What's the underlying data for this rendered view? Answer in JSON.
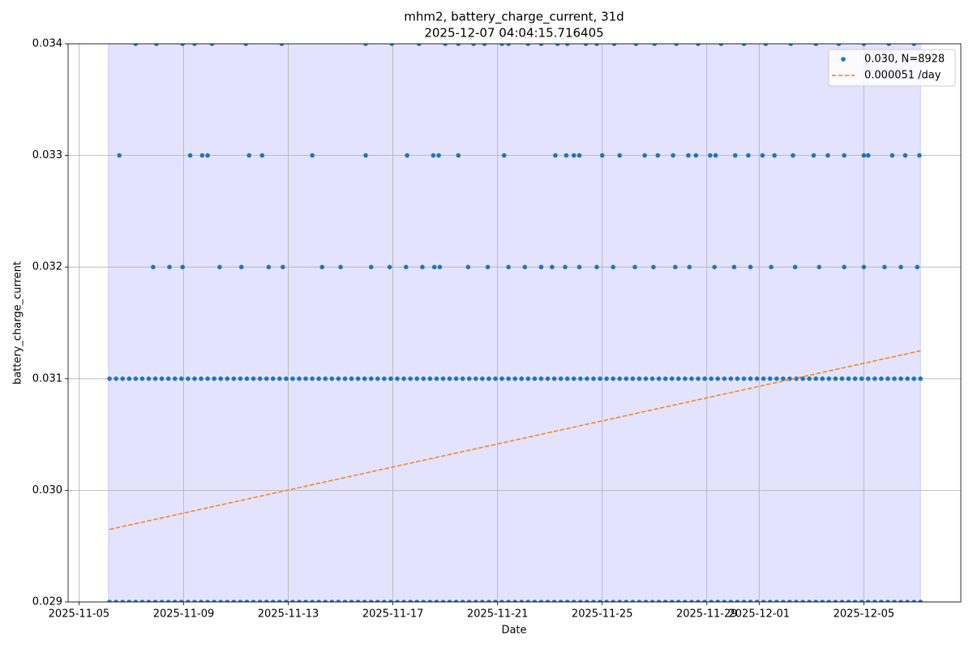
{
  "chart_data": {
    "type": "scatter",
    "title": "mhm2, battery_charge_current, 31d",
    "subtitle": "2025-12-07 04:04:15.716405",
    "x_label": "Date",
    "y_label": "battery_charge_current",
    "xlim": [
      "2025-11-04T14:00",
      "2025-12-08T17:00"
    ],
    "xticks": [
      "2025-11-05",
      "2025-11-09",
      "2025-11-13",
      "2025-11-17",
      "2025-11-21",
      "2025-11-25",
      "2025-11-29",
      "2025-12-01",
      "2025-12-05"
    ],
    "ylim": [
      0.029,
      0.034
    ],
    "yticks": [
      0.029,
      {
        "value": 0.03,
        "label": "0.030"
      },
      0.031,
      0.032,
      0.033,
      0.034
    ],
    "grid": true,
    "legend": "upper right",
    "shaded_span": [
      "2025-11-06T03:00",
      "2025-12-07T04:00"
    ],
    "span_color": "#0000ff",
    "series": [
      {
        "name": "0.030, N=8928",
        "color": "#1f77b4",
        "kind": "scatter",
        "x": [
          "2025-11-06T04:00",
          "2025-11-06T10:00",
          "2025-11-06T16:00",
          "2025-11-06T22:00",
          "2025-11-07T04:00",
          "2025-11-07T10:00",
          "2025-11-07T16:00",
          "2025-11-07T22:00",
          "2025-11-08T04:00",
          "2025-11-08T10:00",
          "2025-11-08T16:00",
          "2025-11-08T22:00",
          "2025-11-09T04:00",
          "2025-11-09T10:00",
          "2025-11-09T16:00",
          "2025-11-09T22:00",
          "2025-11-10T04:00",
          "2025-11-10T10:00",
          "2025-11-10T16:00",
          "2025-11-10T22:00",
          "2025-11-11T04:00",
          "2025-11-11T10:00",
          "2025-11-11T16:00",
          "2025-11-11T22:00",
          "2025-11-12T04:00",
          "2025-11-12T10:00",
          "2025-11-12T16:00",
          "2025-11-12T22:00",
          "2025-11-13T04:00",
          "2025-11-13T10:00",
          "2025-11-13T16:00",
          "2025-11-13T22:00",
          "2025-11-14T04:00",
          "2025-11-14T10:00",
          "2025-11-14T16:00",
          "2025-11-14T22:00",
          "2025-11-15T04:00",
          "2025-11-15T10:00",
          "2025-11-15T16:00",
          "2025-11-15T22:00",
          "2025-11-16T04:00",
          "2025-11-16T10:00",
          "2025-11-16T16:00",
          "2025-11-16T22:00",
          "2025-11-17T04:00",
          "2025-11-17T10:00",
          "2025-11-17T16:00",
          "2025-11-17T22:00",
          "2025-11-18T04:00",
          "2025-11-18T10:00",
          "2025-11-18T16:00",
          "2025-11-18T22:00",
          "2025-11-19T04:00",
          "2025-11-19T10:00",
          "2025-11-19T16:00",
          "2025-11-19T22:00",
          "2025-11-20T04:00",
          "2025-11-20T10:00",
          "2025-11-20T16:00",
          "2025-11-20T22:00",
          "2025-11-21T04:00",
          "2025-11-21T10:00",
          "2025-11-21T16:00",
          "2025-11-21T22:00",
          "2025-11-22T04:00",
          "2025-11-22T10:00",
          "2025-11-22T16:00",
          "2025-11-22T22:00",
          "2025-11-23T04:00",
          "2025-11-23T10:00",
          "2025-11-23T16:00",
          "2025-11-23T22:00",
          "2025-11-24T04:00",
          "2025-11-24T10:00",
          "2025-11-24T16:00",
          "2025-11-24T22:00",
          "2025-11-25T04:00",
          "2025-11-25T10:00",
          "2025-11-25T16:00",
          "2025-11-25T22:00",
          "2025-11-26T04:00",
          "2025-11-26T10:00",
          "2025-11-26T16:00",
          "2025-11-26T22:00",
          "2025-11-27T04:00",
          "2025-11-27T10:00",
          "2025-11-27T16:00",
          "2025-11-27T22:00",
          "2025-11-28T04:00",
          "2025-11-28T10:00",
          "2025-11-28T16:00",
          "2025-11-28T22:00",
          "2025-11-29T04:00",
          "2025-11-29T10:00",
          "2025-11-29T16:00",
          "2025-11-29T22:00",
          "2025-11-30T04:00",
          "2025-11-30T10:00",
          "2025-11-30T16:00",
          "2025-11-30T22:00",
          "2025-12-01T04:00",
          "2025-12-01T10:00",
          "2025-12-01T16:00",
          "2025-12-01T22:00",
          "2025-12-02T04:00",
          "2025-12-02T10:00",
          "2025-12-02T16:00",
          "2025-12-02T22:00",
          "2025-12-03T04:00",
          "2025-12-03T10:00",
          "2025-12-03T16:00",
          "2025-12-03T22:00",
          "2025-12-04T04:00",
          "2025-12-04T10:00",
          "2025-12-04T16:00",
          "2025-12-04T22:00",
          "2025-12-05T04:00",
          "2025-12-05T10:00",
          "2025-12-05T16:00",
          "2025-12-05T22:00",
          "2025-12-06T04:00",
          "2025-12-06T10:00",
          "2025-12-06T16:00",
          "2025-12-06T22:00",
          "2025-12-07T04:00",
          "2025-11-06T04:00",
          "2025-11-06T10:00",
          "2025-11-06T16:00",
          "2025-11-06T22:00",
          "2025-11-07T04:00",
          "2025-11-07T10:00",
          "2025-11-07T16:00",
          "2025-11-07T22:00",
          "2025-11-08T04:00",
          "2025-11-08T10:00",
          "2025-11-08T16:00",
          "2025-11-08T22:00",
          "2025-11-09T04:00",
          "2025-11-09T10:00",
          "2025-11-09T16:00",
          "2025-11-09T22:00",
          "2025-11-10T04:00",
          "2025-11-10T10:00",
          "2025-11-10T16:00",
          "2025-11-10T22:00",
          "2025-11-11T04:00",
          "2025-11-11T10:00",
          "2025-11-11T16:00",
          "2025-11-11T22:00",
          "2025-11-12T04:00",
          "2025-11-12T10:00",
          "2025-11-12T16:00",
          "2025-11-12T22:00",
          "2025-11-13T04:00",
          "2025-11-13T10:00",
          "2025-11-13T16:00",
          "2025-11-13T22:00",
          "2025-11-14T04:00",
          "2025-11-14T10:00",
          "2025-11-14T16:00",
          "2025-11-14T22:00",
          "2025-11-15T04:00",
          "2025-11-15T10:00",
          "2025-11-15T16:00",
          "2025-11-15T22:00",
          "2025-11-16T04:00",
          "2025-11-16T10:00",
          "2025-11-16T16:00",
          "2025-11-16T22:00",
          "2025-11-17T04:00",
          "2025-11-17T10:00",
          "2025-11-17T16:00",
          "2025-11-17T22:00",
          "2025-11-18T04:00",
          "2025-11-18T10:00",
          "2025-11-18T16:00",
          "2025-11-18T22:00",
          "2025-11-19T04:00",
          "2025-11-19T10:00",
          "2025-11-19T16:00",
          "2025-11-19T22:00",
          "2025-11-20T04:00",
          "2025-11-20T10:00",
          "2025-11-20T16:00",
          "2025-11-20T22:00",
          "2025-11-21T04:00",
          "2025-11-21T10:00",
          "2025-11-21T16:00",
          "2025-11-21T22:00",
          "2025-11-22T04:00",
          "2025-11-22T10:00",
          "2025-11-22T16:00",
          "2025-11-22T22:00",
          "2025-11-23T04:00",
          "2025-11-23T10:00",
          "2025-11-23T16:00",
          "2025-11-23T22:00",
          "2025-11-24T04:00",
          "2025-11-24T10:00",
          "2025-11-24T16:00",
          "2025-11-24T22:00",
          "2025-11-25T04:00",
          "2025-11-25T10:00",
          "2025-11-25T16:00",
          "2025-11-25T22:00",
          "2025-11-26T04:00",
          "2025-11-26T10:00",
          "2025-11-26T16:00",
          "2025-11-26T22:00",
          "2025-11-27T04:00",
          "2025-11-27T10:00",
          "2025-11-27T16:00",
          "2025-11-27T22:00",
          "2025-11-28T04:00",
          "2025-11-28T10:00",
          "2025-11-28T16:00",
          "2025-11-28T22:00",
          "2025-11-29T04:00",
          "2025-11-29T10:00",
          "2025-11-29T16:00",
          "2025-11-29T22:00",
          "2025-11-30T04:00",
          "2025-11-30T10:00",
          "2025-11-30T16:00",
          "2025-11-30T22:00",
          "2025-12-01T04:00",
          "2025-12-01T10:00",
          "2025-12-01T16:00",
          "2025-12-01T22:00",
          "2025-12-02T04:00",
          "2025-12-02T10:00",
          "2025-12-02T16:00",
          "2025-12-02T22:00",
          "2025-12-03T04:00",
          "2025-12-03T10:00",
          "2025-12-03T16:00",
          "2025-12-03T22:00",
          "2025-12-04T04:00",
          "2025-12-04T10:00",
          "2025-12-04T16:00",
          "2025-12-04T22:00",
          "2025-12-05T04:00",
          "2025-12-05T10:00",
          "2025-12-05T16:00",
          "2025-12-05T22:00",
          "2025-12-06T04:00",
          "2025-12-06T10:00",
          "2025-12-06T16:00",
          "2025-12-06T22:00",
          "2025-12-07T04:00",
          "2025-11-07T04:00",
          "2025-11-07T23:00",
          "2025-11-08T23:00",
          "2025-11-09T10:00",
          "2025-11-10T02:00",
          "2025-11-11T09:00",
          "2025-11-12T18:00",
          "2025-11-15T23:00",
          "2025-11-16T23:00",
          "2025-11-18T00:00",
          "2025-11-19T00:00",
          "2025-11-19T12:00",
          "2025-11-20T02:00",
          "2025-11-20T12:00",
          "2025-11-21T04:00",
          "2025-11-21T10:00",
          "2025-11-22T04:00",
          "2025-11-22T16:00",
          "2025-11-23T07:00",
          "2025-11-23T16:00",
          "2025-11-24T09:00",
          "2025-11-24T19:00",
          "2025-11-25T11:00",
          "2025-11-26T07:00",
          "2025-11-27T00:00",
          "2025-11-27T20:00",
          "2025-11-28T16:00",
          "2025-11-29T13:00",
          "2025-11-30T10:00",
          "2025-12-01T06:00",
          "2025-12-02T05:00",
          "2025-12-03T04:00",
          "2025-12-04T01:00",
          "2025-12-05T00:00",
          "2025-12-05T23:00",
          "2025-12-06T22:00",
          "2025-11-06T13:00",
          "2025-11-09T06:00",
          "2025-11-09T17:00",
          "2025-11-09T22:00",
          "2025-11-11T12:00",
          "2025-11-12T00:00",
          "2025-11-13T22:00",
          "2025-11-15T23:00",
          "2025-11-17T13:00",
          "2025-11-18T13:00",
          "2025-11-18T18:00",
          "2025-11-19T12:00",
          "2025-11-21T06:00",
          "2025-11-23T05:00",
          "2025-11-23T15:00",
          "2025-11-23T22:00",
          "2025-11-24T03:00",
          "2025-11-25T00:00",
          "2025-11-25T16:00",
          "2025-11-26T15:00",
          "2025-11-27T03:00",
          "2025-11-27T17:00",
          "2025-11-28T07:00",
          "2025-11-28T14:00",
          "2025-11-29T03:00",
          "2025-11-29T08:00",
          "2025-11-30T02:00",
          "2025-11-30T14:00",
          "2025-12-01T03:00",
          "2025-12-01T14:00",
          "2025-12-02T07:00",
          "2025-12-03T02:00",
          "2025-12-03T15:00",
          "2025-12-04T06:00",
          "2025-12-05T00:00",
          "2025-12-05T04:00",
          "2025-12-06T02:00",
          "2025-12-06T14:00",
          "2025-12-07T03:00",
          "2025-11-07T20:00",
          "2025-11-08T11:00",
          "2025-11-08T23:00",
          "2025-11-10T09:00",
          "2025-11-11T05:00",
          "2025-11-12T06:00",
          "2025-11-12T19:00",
          "2025-11-14T07:00",
          "2025-11-15T00:00",
          "2025-11-16T04:00",
          "2025-11-16T21:00",
          "2025-11-17T12:00",
          "2025-11-18T03:00",
          "2025-11-18T14:00",
          "2025-11-18T19:00",
          "2025-11-19T21:00",
          "2025-11-20T15:00",
          "2025-11-21T10:00",
          "2025-11-22T01:00",
          "2025-11-22T16:00",
          "2025-11-23T02:00",
          "2025-11-23T14:00",
          "2025-11-24T03:00",
          "2025-11-24T19:00",
          "2025-11-25T10:00",
          "2025-11-26T06:00",
          "2025-11-26T23:00",
          "2025-11-27T19:00",
          "2025-11-28T08:00",
          "2025-11-29T07:00",
          "2025-11-30T01:00",
          "2025-11-30T16:00",
          "2025-12-01T11:00",
          "2025-12-02T09:00",
          "2025-12-03T07:00",
          "2025-12-04T06:00",
          "2025-12-05T00:00",
          "2025-12-05T19:00",
          "2025-12-06T10:00",
          "2025-12-07T01:00"
        ],
        "values": [
          0.031,
          0.031,
          0.031,
          0.031,
          0.031,
          0.031,
          0.031,
          0.031,
          0.031,
          0.031,
          0.031,
          0.031,
          0.031,
          0.031,
          0.031,
          0.031,
          0.031,
          0.031,
          0.031,
          0.031,
          0.031,
          0.031,
          0.031,
          0.031,
          0.031,
          0.031,
          0.031,
          0.031,
          0.031,
          0.031,
          0.031,
          0.031,
          0.031,
          0.031,
          0.031,
          0.031,
          0.031,
          0.031,
          0.031,
          0.031,
          0.031,
          0.031,
          0.031,
          0.031,
          0.031,
          0.031,
          0.031,
          0.031,
          0.031,
          0.031,
          0.031,
          0.031,
          0.031,
          0.031,
          0.031,
          0.031,
          0.031,
          0.031,
          0.031,
          0.031,
          0.031,
          0.031,
          0.031,
          0.031,
          0.031,
          0.031,
          0.031,
          0.031,
          0.031,
          0.031,
          0.031,
          0.031,
          0.031,
          0.031,
          0.031,
          0.031,
          0.031,
          0.031,
          0.031,
          0.031,
          0.031,
          0.031,
          0.031,
          0.031,
          0.031,
          0.031,
          0.031,
          0.031,
          0.031,
          0.031,
          0.031,
          0.031,
          0.031,
          0.031,
          0.031,
          0.031,
          0.031,
          0.031,
          0.031,
          0.031,
          0.031,
          0.031,
          0.031,
          0.031,
          0.031,
          0.031,
          0.031,
          0.031,
          0.031,
          0.031,
          0.031,
          0.031,
          0.031,
          0.031,
          0.031,
          0.031,
          0.031,
          0.031,
          0.031,
          0.031,
          0.031,
          0.031,
          0.031,
          0.031,
          0.031,
          0.029,
          0.029,
          0.029,
          0.029,
          0.029,
          0.029,
          0.029,
          0.029,
          0.029,
          0.029,
          0.029,
          0.029,
          0.029,
          0.029,
          0.029,
          0.029,
          0.029,
          0.029,
          0.029,
          0.029,
          0.029,
          0.029,
          0.029,
          0.029,
          0.029,
          0.029,
          0.029,
          0.029,
          0.029,
          0.029,
          0.029,
          0.029,
          0.029,
          0.029,
          0.029,
          0.029,
          0.029,
          0.029,
          0.029,
          0.029,
          0.029,
          0.029,
          0.029,
          0.029,
          0.029,
          0.029,
          0.029,
          0.029,
          0.029,
          0.029,
          0.029,
          0.029,
          0.029,
          0.029,
          0.029,
          0.029,
          0.029,
          0.029,
          0.029,
          0.029,
          0.029,
          0.029,
          0.029,
          0.029,
          0.029,
          0.029,
          0.029,
          0.029,
          0.029,
          0.029,
          0.029,
          0.029,
          0.029,
          0.029,
          0.029,
          0.029,
          0.029,
          0.029,
          0.029,
          0.029,
          0.029,
          0.029,
          0.029,
          0.029,
          0.029,
          0.029,
          0.029,
          0.029,
          0.029,
          0.029,
          0.029,
          0.029,
          0.029,
          0.029,
          0.029,
          0.029,
          0.029,
          0.029,
          0.029,
          0.029,
          0.029,
          0.029,
          0.029,
          0.029,
          0.029,
          0.029,
          0.029,
          0.029,
          0.029,
          0.029,
          0.029,
          0.029,
          0.029,
          0.029,
          0.029,
          0.029,
          0.029,
          0.029,
          0.029,
          0.029,
          0.029,
          0.029,
          0.029,
          0.029,
          0.029,
          0.034,
          0.034,
          0.034,
          0.034,
          0.034,
          0.034,
          0.034,
          0.034,
          0.034,
          0.034,
          0.034,
          0.034,
          0.034,
          0.034,
          0.034,
          0.034,
          0.034,
          0.034,
          0.034,
          0.034,
          0.034,
          0.034,
          0.034,
          0.034,
          0.034,
          0.034,
          0.034,
          0.034,
          0.034,
          0.034,
          0.034,
          0.034,
          0.034,
          0.034,
          0.034,
          0.034,
          0.033,
          0.033,
          0.033,
          0.033,
          0.033,
          0.033,
          0.033,
          0.033,
          0.033,
          0.033,
          0.033,
          0.033,
          0.033,
          0.033,
          0.033,
          0.033,
          0.033,
          0.033,
          0.033,
          0.033,
          0.033,
          0.033,
          0.033,
          0.033,
          0.033,
          0.033,
          0.033,
          0.033,
          0.033,
          0.033,
          0.033,
          0.033,
          0.033,
          0.033,
          0.033,
          0.033,
          0.033,
          0.033,
          0.033,
          0.032,
          0.032,
          0.032,
          0.032,
          0.032,
          0.032,
          0.032,
          0.032,
          0.032,
          0.032,
          0.032,
          0.032,
          0.032,
          0.032,
          0.032,
          0.032,
          0.032,
          0.032,
          0.032,
          0.032,
          0.032,
          0.032,
          0.032,
          0.032,
          0.032,
          0.032,
          0.032,
          0.032,
          0.032,
          0.032,
          0.032,
          0.032,
          0.032,
          0.032,
          0.032,
          0.032,
          0.032,
          0.032,
          0.032,
          0.032
        ]
      },
      {
        "name": "0.000051 /day",
        "color": "#ff7f0e",
        "kind": "line",
        "linestyle": "dashed",
        "x": [
          "2025-11-06T04:00",
          "2025-12-07T04:00"
        ],
        "values": [
          0.02965,
          0.03125
        ]
      }
    ]
  }
}
